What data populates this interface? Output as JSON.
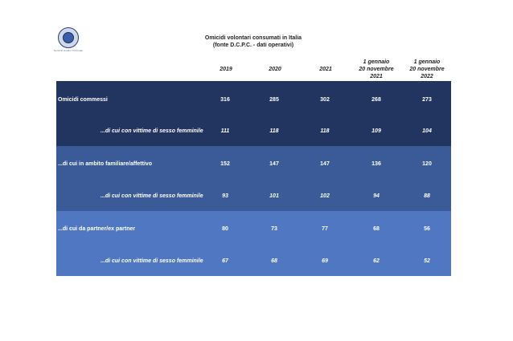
{
  "header": {
    "title_line1": "Omicidi volontari consumati in Italia",
    "title_line2": "(fonte D.C.P.C. - dati operativi)",
    "logo_caption": "Servizio Analisi Criminale"
  },
  "columns": [
    {
      "lines": [
        "2019"
      ]
    },
    {
      "lines": [
        "2020"
      ]
    },
    {
      "lines": [
        "2021"
      ]
    },
    {
      "lines": [
        "1 gennaio",
        "20 novembre",
        "2021"
      ]
    },
    {
      "lines": [
        "1 gennaio",
        "20 novembre",
        "2022"
      ]
    }
  ],
  "rows": [
    {
      "label": "Omicidi commessi",
      "values": [
        "316",
        "285",
        "302",
        "268",
        "273"
      ]
    },
    {
      "label": "...di cui con vittime di sesso femminile",
      "values": [
        "111",
        "118",
        "118",
        "109",
        "104"
      ]
    },
    {
      "label": "...di cui in ambito familiare/affettivo",
      "values": [
        "152",
        "147",
        "147",
        "136",
        "120"
      ]
    },
    {
      "label": "...di cui con vittime di sesso femminile",
      "values": [
        "93",
        "101",
        "102",
        "94",
        "88"
      ]
    },
    {
      "label": "...di cui da partner/ex partner",
      "values": [
        "80",
        "73",
        "77",
        "68",
        "56"
      ]
    },
    {
      "label": "...di cui con vittime di sesso femminile",
      "values": [
        "67",
        "68",
        "69",
        "62",
        "52"
      ]
    }
  ],
  "colors": {
    "band_dark": "#223560",
    "band_mid": "#3a5a98",
    "band_light": "#4f77c2"
  }
}
